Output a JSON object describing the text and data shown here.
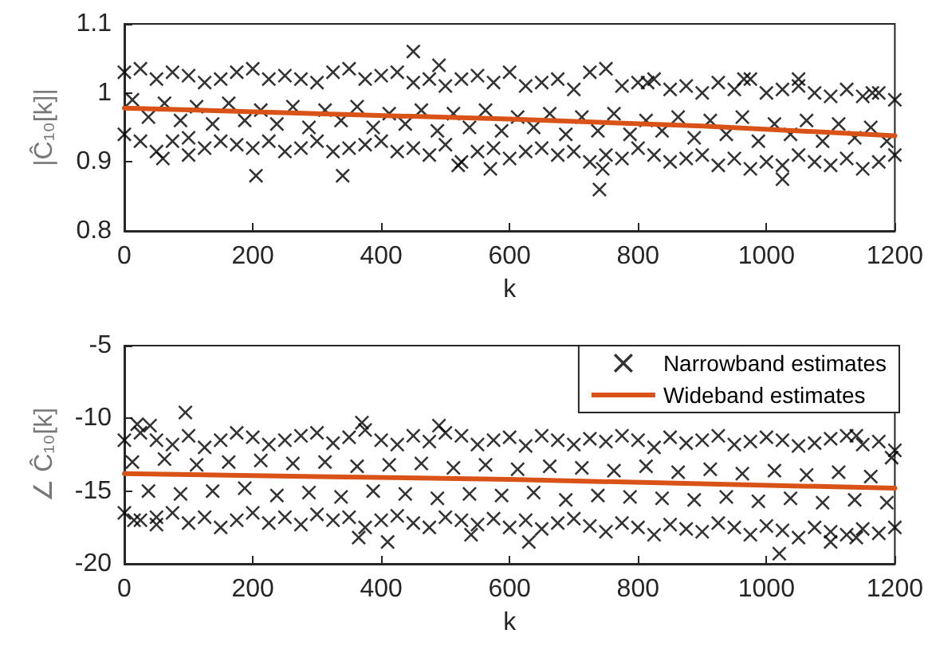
{
  "chart_data": [
    {
      "type": "scatter",
      "xlabel": "k",
      "ylabel": "|Ĉ₁₀[k]|",
      "xlim": [
        0,
        1200
      ],
      "xticks": [
        0,
        200,
        400,
        600,
        800,
        1000,
        1200
      ],
      "ylim": [
        0.8,
        1.1
      ],
      "yticks": [
        0.8,
        0.9,
        1,
        1.1
      ],
      "grid": false,
      "legend": false,
      "series": [
        {
          "marker": "cross",
          "color": "#000000",
          "x": [
            0,
            25,
            50,
            75,
            100,
            125,
            150,
            175,
            200,
            225,
            250,
            275,
            300,
            325,
            350,
            375,
            400,
            425,
            450,
            475,
            500,
            525,
            550,
            575,
            600,
            625,
            650,
            675,
            700,
            725,
            750,
            775,
            800,
            825,
            850,
            875,
            900,
            925,
            950,
            975,
            1000,
            1025,
            1050,
            1075,
            1100,
            1125,
            1150,
            1175,
            1200,
            0,
            25,
            50,
            75,
            100,
            125,
            150,
            175,
            200,
            225,
            250,
            275,
            300,
            325,
            350,
            375,
            400,
            425,
            450,
            475,
            500,
            525,
            550,
            575,
            600,
            625,
            650,
            675,
            700,
            725,
            750,
            775,
            800,
            825,
            850,
            875,
            900,
            925,
            950,
            975,
            1000,
            1025,
            1050,
            1075,
            1100,
            1125,
            1150,
            1175,
            1200,
            12.5,
            37.5,
            62.5,
            87.5,
            112.5,
            137.5,
            162.5,
            187.5,
            212.5,
            237.5,
            262.5,
            287.5,
            312.5,
            337.5,
            362.5,
            387.5,
            412.5,
            437.5,
            462.5,
            487.5,
            512.5,
            537.5,
            562.5,
            587.5,
            612.5,
            637.5,
            662.5,
            687.5,
            712.5,
            737.5,
            762.5,
            787.5,
            812.5,
            837.5,
            862.5,
            887.5,
            912.5,
            937.5,
            962.5,
            987.5,
            1012.5,
            1037.5,
            1062.5,
            1087.5,
            1112.5,
            1137.5,
            1162.5,
            1187.5,
            450,
            490,
            205,
            340,
            740,
            745,
            1050,
            1165,
            60,
            100,
            1025,
            965,
            570,
            520,
            815
          ],
          "values": [
            1.03,
            1.035,
            1.02,
            1.03,
            1.025,
            1.015,
            1.02,
            1.03,
            1.035,
            1.02,
            1.025,
            1.02,
            1.015,
            1.03,
            1.035,
            1.02,
            1.025,
            1.03,
            1.015,
            1.02,
            1.01,
            1.02,
            1.025,
            1.015,
            1.03,
            1.01,
            1.015,
            1.02,
            1.005,
            1.03,
            1.035,
            1.01,
            1.015,
            1.02,
            1.005,
            1.01,
            1.0,
            1.015,
            1.005,
            1.02,
            1.0,
            1.005,
            1.01,
            1.0,
            0.995,
            1.005,
            0.995,
            1.0,
            0.99,
            0.94,
            0.93,
            0.915,
            0.93,
            0.935,
            0.92,
            0.93,
            0.925,
            0.92,
            0.93,
            0.915,
            0.92,
            0.93,
            0.915,
            0.92,
            0.925,
            0.93,
            0.915,
            0.92,
            0.91,
            0.925,
            0.9,
            0.915,
            0.92,
            0.905,
            0.915,
            0.92,
            0.91,
            0.915,
            0.9,
            0.91,
            0.905,
            0.92,
            0.91,
            0.9,
            0.905,
            0.91,
            0.895,
            0.905,
            0.89,
            0.9,
            0.895,
            0.91,
            0.9,
            0.895,
            0.905,
            0.89,
            0.9,
            0.91,
            0.99,
            0.965,
            0.985,
            0.96,
            0.98,
            0.955,
            0.985,
            0.96,
            0.975,
            0.955,
            0.98,
            0.95,
            0.975,
            0.96,
            0.98,
            0.95,
            0.97,
            0.955,
            0.975,
            0.945,
            0.97,
            0.95,
            0.975,
            0.945,
            0.965,
            0.95,
            0.97,
            0.94,
            0.965,
            0.945,
            0.97,
            0.94,
            0.96,
            0.945,
            0.965,
            0.935,
            0.96,
            0.94,
            0.965,
            0.93,
            0.955,
            0.94,
            0.96,
            0.93,
            0.955,
            0.935,
            0.95,
            0.93,
            1.06,
            1.04,
            0.88,
            0.88,
            0.86,
            0.89,
            1.02,
            1.0,
            0.905,
            0.91,
            0.875,
            1.02,
            0.89,
            0.895,
            1.015
          ]
        },
        {
          "type": "line",
          "color": "#d95319",
          "line_style": "solid",
          "x": [
            0,
            300,
            600,
            900,
            1200
          ],
          "values": [
            0.978,
            0.97,
            0.962,
            0.952,
            0.938
          ]
        }
      ]
    },
    {
      "type": "scatter",
      "xlabel": "k",
      "ylabel": "∠ Ĉ₁₀[k]",
      "xlim": [
        0,
        1200
      ],
      "xticks": [
        0,
        200,
        400,
        600,
        800,
        1000,
        1200
      ],
      "ylim": [
        -20,
        -5
      ],
      "yticks": [
        -20,
        -15,
        -10,
        -5
      ],
      "grid": false,
      "legend": "top right",
      "series": [
        {
          "name": "Narrowband estimates",
          "marker": "cross",
          "color": "#000000",
          "x": [
            0,
            25,
            50,
            75,
            100,
            125,
            150,
            175,
            200,
            225,
            250,
            275,
            300,
            325,
            350,
            375,
            400,
            425,
            450,
            475,
            500,
            525,
            550,
            575,
            600,
            625,
            650,
            675,
            700,
            725,
            750,
            775,
            800,
            825,
            850,
            875,
            900,
            925,
            950,
            975,
            1000,
            1025,
            1050,
            1075,
            1100,
            1125,
            1150,
            1175,
            1200,
            0,
            25,
            50,
            75,
            100,
            125,
            150,
            175,
            200,
            225,
            250,
            275,
            300,
            325,
            350,
            375,
            400,
            425,
            450,
            475,
            500,
            525,
            550,
            575,
            600,
            625,
            650,
            675,
            700,
            725,
            750,
            775,
            800,
            825,
            850,
            875,
            900,
            925,
            950,
            975,
            1000,
            1025,
            1050,
            1075,
            1100,
            1125,
            1150,
            1175,
            1200,
            12.5,
            37.5,
            62.5,
            87.5,
            112.5,
            137.5,
            162.5,
            187.5,
            212.5,
            237.5,
            262.5,
            287.5,
            312.5,
            337.5,
            362.5,
            387.5,
            412.5,
            437.5,
            462.5,
            487.5,
            512.5,
            537.5,
            562.5,
            587.5,
            612.5,
            637.5,
            662.5,
            687.5,
            712.5,
            737.5,
            762.5,
            787.5,
            812.5,
            837.5,
            862.5,
            887.5,
            912.5,
            937.5,
            962.5,
            987.5,
            1012.5,
            1037.5,
            1062.5,
            1087.5,
            1112.5,
            1137.5,
            1162.5,
            1187.5,
            95,
            20,
            40,
            370,
            490,
            365,
            410,
            540,
            630,
            1020,
            1100,
            1140,
            15,
            50,
            1140,
            1195
          ],
          "values": [
            -11.5,
            -11,
            -11.5,
            -11.8,
            -11.2,
            -12,
            -11.5,
            -11,
            -11.3,
            -11.8,
            -11.5,
            -11.2,
            -11,
            -11.7,
            -11.3,
            -10.8,
            -11.5,
            -11.8,
            -11.2,
            -11.6,
            -11,
            -11.2,
            -11.8,
            -11.5,
            -11.3,
            -11.9,
            -11.2,
            -11.5,
            -11.8,
            -11.4,
            -11.6,
            -11.2,
            -11.5,
            -12,
            -11.3,
            -11.7,
            -11.5,
            -11.2,
            -11.8,
            -11.6,
            -11.3,
            -11.5,
            -11.9,
            -11.7,
            -11.4,
            -11.2,
            -11.8,
            -11.6,
            -12.2,
            -16.5,
            -17,
            -16.8,
            -16.5,
            -17.2,
            -16.8,
            -17.5,
            -17,
            -16.5,
            -17.2,
            -16.8,
            -17.3,
            -16.6,
            -17,
            -16.8,
            -17.5,
            -17,
            -16.7,
            -17.2,
            -17.5,
            -16.8,
            -17,
            -17.3,
            -16.9,
            -17.5,
            -17,
            -17.6,
            -17.2,
            -16.9,
            -17.4,
            -17.8,
            -17.2,
            -17.5,
            -18,
            -17.3,
            -17.6,
            -17.8,
            -17.2,
            -17.5,
            -18,
            -17.4,
            -17.7,
            -18.2,
            -17.5,
            -17.8,
            -18,
            -17.6,
            -17.9,
            -17.5,
            -13,
            -15,
            -12.8,
            -15.2,
            -13.2,
            -15,
            -13,
            -14.8,
            -12.9,
            -15.3,
            -13.1,
            -15.1,
            -13,
            -15.4,
            -13.3,
            -15,
            -13.2,
            -15.2,
            -13.1,
            -15.5,
            -13.4,
            -15.2,
            -13.2,
            -15.3,
            -13.5,
            -15.1,
            -13.3,
            -15.6,
            -13.4,
            -15.3,
            -13.6,
            -15.4,
            -13.3,
            -15.5,
            -13.7,
            -15.6,
            -13.5,
            -15.4,
            -13.8,
            -15.7,
            -13.6,
            -15.5,
            -13.9,
            -15.8,
            -13.7,
            -15.6,
            -14,
            -15.8,
            -9.6,
            -10.4,
            -10.5,
            -10.3,
            -10.5,
            -18.2,
            -18.5,
            -18,
            -18.5,
            -19.3,
            -18.5,
            -18.2,
            -17,
            -17.3,
            -11.2,
            -12.7
          ]
        },
        {
          "type": "line",
          "name": "Wideband estimates",
          "color": "#d95319",
          "line_style": "solid",
          "x": [
            0,
            300,
            600,
            900,
            1200
          ],
          "values": [
            -13.8,
            -14.0,
            -14.2,
            -14.5,
            -14.8
          ]
        }
      ]
    }
  ]
}
